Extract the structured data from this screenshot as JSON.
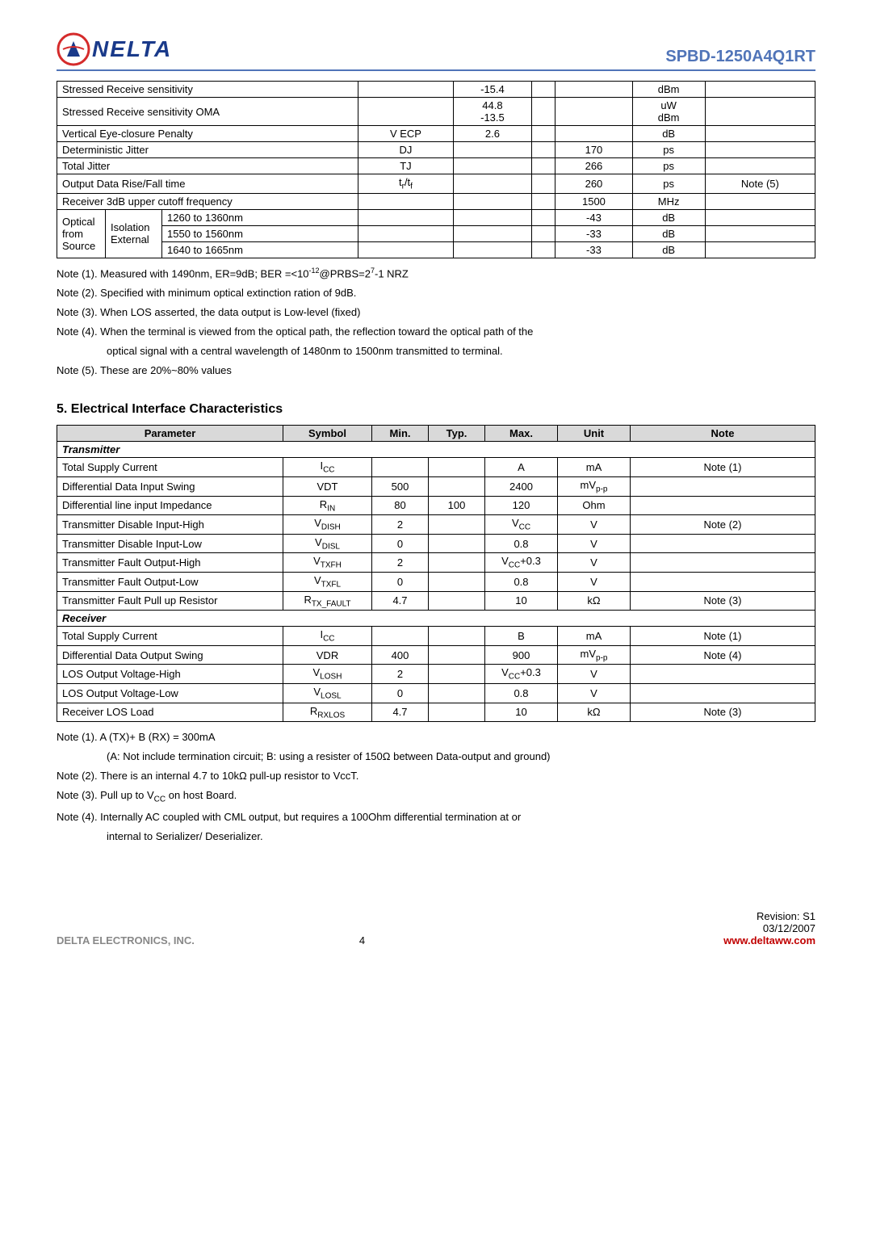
{
  "header": {
    "logo_text": "NELTA",
    "part_number": "SPBD-1250A4Q1RT"
  },
  "table1": {
    "rows": [
      [
        "Stressed Receive sensitivity",
        "",
        "-15.4",
        "",
        "",
        "dBm",
        ""
      ],
      [
        "Stressed Receive sensitivity OMA",
        "",
        "44.8\n-13.5",
        "",
        "",
        "uW\ndBm",
        ""
      ],
      [
        "Vertical Eye-closure Penalty",
        "V ECP",
        "2.6",
        "",
        "",
        "dB",
        ""
      ],
      [
        "Deterministic Jitter",
        "DJ",
        "",
        "",
        "170",
        "ps",
        ""
      ],
      [
        "Total Jitter",
        "TJ",
        "",
        "",
        "266",
        "ps",
        ""
      ],
      [
        "Output Data Rise/Fall time",
        "t_r/t_f",
        "",
        "",
        "260",
        "ps",
        "Note (5)"
      ],
      [
        "Receiver 3dB upper cutoff frequency",
        "",
        "",
        "",
        "1500",
        "MHz",
        ""
      ],
      [
        "1260 to 1360nm",
        "",
        "",
        "",
        "-43",
        "dB",
        ""
      ],
      [
        "1550 to 1560nm",
        "",
        "",
        "",
        "-33",
        "dB",
        ""
      ],
      [
        "1640 to 1665nm",
        "",
        "",
        "",
        "-33",
        "dB",
        ""
      ]
    ],
    "optical_label_1": "Optical",
    "optical_label_2": "Isolation",
    "optical_label_3": "from",
    "optical_label_4": "External",
    "optical_label_5": "Source"
  },
  "notes1": {
    "n1": "Note (1). Measured with 1490nm, ER=9dB; BER =<10⁻¹²@PRBS=2⁷-1 NRZ",
    "n2": "Note (2). Specified with minimum optical extinction ration of 9dB.",
    "n3": "Note (3). When LOS asserted, the data output is Low-level (fixed)",
    "n4a": "Note (4). When the terminal is viewed from the optical path, the reflection toward the optical path of the",
    "n4b": "optical signal with a central wavelength of 1480nm to 1500nm transmitted to terminal.",
    "n5": "Note (5). These are 20%~80% values"
  },
  "section5": {
    "title": "5. Electrical Interface Characteristics",
    "headers": [
      "Parameter",
      "Symbol",
      "Min.",
      "Typ.",
      "Max.",
      "Unit",
      "Note"
    ],
    "transmitter_label": "Transmitter",
    "receiver_label": "Receiver",
    "tx_rows": [
      [
        "Total Supply Current",
        "I_CC",
        "",
        "",
        "A",
        "mA",
        "Note (1)"
      ],
      [
        "Differential Data Input Swing",
        "VDT",
        "500",
        "",
        "2400",
        "mV_p-p",
        ""
      ],
      [
        "Differential line input Impedance",
        "R_IN",
        "80",
        "100",
        "120",
        "Ohm",
        ""
      ],
      [
        "Transmitter Disable Input-High",
        "V_DISH",
        "2",
        "",
        "V_CC",
        "V",
        "Note (2)"
      ],
      [
        "Transmitter Disable Input-Low",
        "V_DISL",
        "0",
        "",
        "0.8",
        "V",
        ""
      ],
      [
        "Transmitter Fault Output-High",
        "V_TXFH",
        "2",
        "",
        "V_CC+0.3",
        "V",
        ""
      ],
      [
        "Transmitter Fault Output-Low",
        "V_TXFL",
        "0",
        "",
        "0.8",
        "V",
        ""
      ],
      [
        "Transmitter Fault Pull up Resistor",
        "R_TX_FAULT",
        "4.7",
        "",
        "10",
        "kΩ",
        "Note (3)"
      ]
    ],
    "rx_rows": [
      [
        "Total Supply Current",
        "I_CC",
        "",
        "",
        "B",
        "mA",
        "Note (1)"
      ],
      [
        "Differential Data Output Swing",
        "VDR",
        "400",
        "",
        "900",
        "mV_p-p",
        "Note (4)"
      ],
      [
        "LOS Output Voltage-High",
        "V_LOSH",
        "2",
        "",
        "V_CC+0.3",
        "V",
        ""
      ],
      [
        "LOS Output Voltage-Low",
        "V_LOSL",
        "0",
        "",
        "0.8",
        "V",
        ""
      ],
      [
        "Receiver LOS Load",
        "R_RXLOS",
        "4.7",
        "",
        "10",
        "kΩ",
        "Note (3)"
      ]
    ]
  },
  "notes2": {
    "n1": "Note (1). A (TX)+ B (RX) = 300mA",
    "n1b": "(A: Not include termination circuit; B: using a resister of 150Ω between Data-output and ground)",
    "n2": "Note (2). There is an internal 4.7 to 10kΩ pull-up resistor to VccT.",
    "n3": "Note (3). Pull up to V_CC on host Board.",
    "n4a": "Note (4). Internally AC coupled with CML output, but requires a 100Ohm differential termination at or",
    "n4b": "internal to Serializer/ Deserializer."
  },
  "footer": {
    "page": "4",
    "revision": "Revision:  S1",
    "date": "03/12/2007",
    "company": "DELTA ELECTRONICS, INC.",
    "url": "www.deltaww.com"
  },
  "colors": {
    "header_blue": "#5074b8",
    "logo_blue": "#1a3a8a",
    "logo_red": "#d52b2b",
    "link_red": "#c00000",
    "gray_header": "#d9d9d9"
  }
}
